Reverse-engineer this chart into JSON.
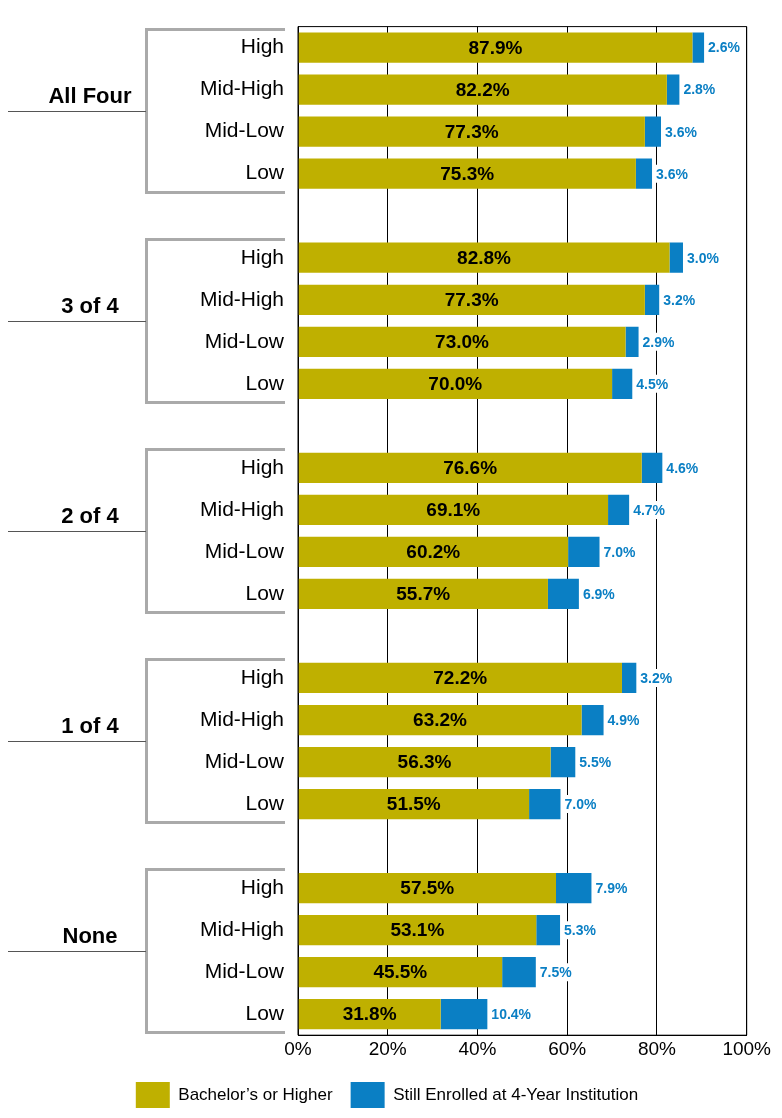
{
  "chart_data": {
    "type": "bar",
    "orientation": "horizontal",
    "stacked": true,
    "categories": [
      "High",
      "Mid-High",
      "Mid-Low",
      "Low",
      null,
      "High",
      "Mid-High",
      "Mid-Low",
      "Low",
      null,
      "High",
      "Mid-High",
      "Mid-Low",
      "Low",
      null,
      "High",
      "Mid-High",
      "Mid-Low",
      "Low",
      null,
      "High",
      "Mid-High",
      "Mid-Low",
      "Low"
    ],
    "series": [
      {
        "name": "Bachelor’s or Higher",
        "color": "#bfb000",
        "values": [
          87.9,
          82.2,
          77.3,
          75.3,
          null,
          82.8,
          77.3,
          73.0,
          70.0,
          null,
          76.6,
          69.1,
          60.2,
          55.7,
          null,
          72.2,
          63.2,
          56.3,
          51.5,
          null,
          57.5,
          53.1,
          45.5,
          31.8
        ],
        "value_labels": [
          "87.9%",
          "82.2%",
          "77.3%",
          "75.3%",
          null,
          "82.8%",
          "77.3%",
          "73.0%",
          "70.0%",
          null,
          "76.6%",
          "69.1%",
          "60.2%",
          "55.7%",
          null,
          "72.2%",
          "63.2%",
          "56.3%",
          "51.5%",
          null,
          "57.5%",
          "53.1%",
          "45.5%",
          "31.8%"
        ]
      },
      {
        "name": "Still Enrolled at 4-Year Institution",
        "color": "#0a7fc4",
        "values": [
          2.6,
          2.8,
          3.6,
          3.6,
          null,
          3.0,
          3.2,
          2.9,
          4.5,
          null,
          4.6,
          4.7,
          7.0,
          6.9,
          null,
          3.2,
          4.9,
          5.5,
          7.0,
          null,
          7.9,
          5.3,
          7.5,
          10.4
        ],
        "value_labels": [
          "2.6%",
          "2.8%",
          "3.6%",
          "3.6%",
          null,
          "3.0%",
          "3.2%",
          "2.9%",
          "4.5%",
          null,
          "4.6%",
          "4.7%",
          "7.0%",
          "6.9%",
          null,
          "3.2%",
          "4.9%",
          "5.5%",
          "7.0%",
          null,
          "7.9%",
          "5.3%",
          "7.5%",
          "10.4%"
        ]
      }
    ],
    "annotations": [
      "All Four",
      "3 of 4",
      "2 of 4",
      "1 of 4",
      "None"
    ],
    "xlim": [
      0,
      100
    ],
    "xticks": [
      {
        "value": 0,
        "label": "0%"
      },
      {
        "value": 20,
        "label": "20%"
      },
      {
        "value": 40,
        "label": "40%"
      },
      {
        "value": 60,
        "label": "60%"
      },
      {
        "value": 80,
        "label": "80%"
      },
      {
        "value": 100,
        "label": "100%"
      }
    ],
    "grid": "x",
    "legend": "bottom"
  }
}
